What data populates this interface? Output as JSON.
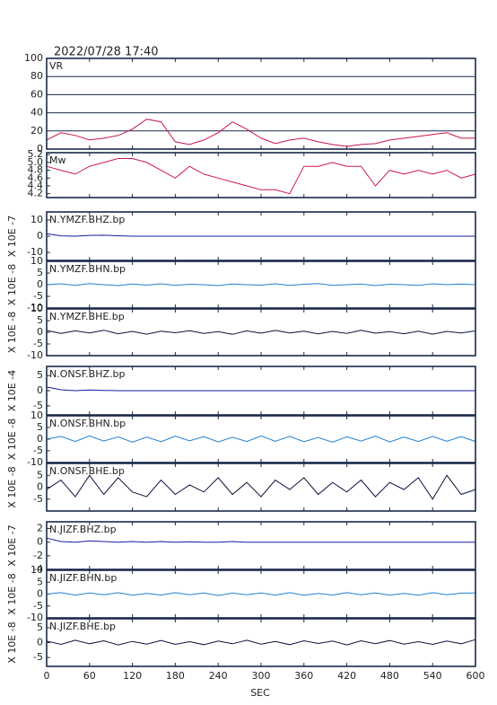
{
  "title": "2022/07/28 17:40",
  "x_axis": {
    "label": "SEC",
    "xlim": [
      0,
      600
    ],
    "xticks": [
      0,
      60,
      120,
      180,
      240,
      300,
      360,
      420,
      480,
      540,
      600
    ],
    "x": [
      0,
      20,
      40,
      60,
      80,
      100,
      120,
      140,
      160,
      180,
      200,
      220,
      240,
      260,
      280,
      300,
      320,
      340,
      360,
      380,
      400,
      420,
      440,
      460,
      480,
      500,
      520,
      540,
      560,
      580,
      600
    ]
  },
  "chart_data": [
    {
      "type": "line",
      "label": "VR",
      "ylim": [
        0,
        100
      ],
      "yticks": [
        0,
        20,
        40,
        60,
        80,
        100
      ],
      "grid": true,
      "series": [
        {
          "color": "#c8184a",
          "values": [
            10,
            18,
            15,
            10,
            12,
            15,
            22,
            33,
            30,
            8,
            5,
            10,
            18,
            30,
            22,
            12,
            6,
            10,
            12,
            8,
            5,
            3,
            5,
            6,
            10,
            12,
            14,
            16,
            18,
            12,
            12
          ]
        }
      ]
    },
    {
      "type": "line",
      "label": "Mw",
      "ylim": [
        4.1,
        5.25
      ],
      "yticks": [
        4.2,
        4.4,
        4.6,
        4.8,
        {
          "value": 5,
          "label": "5.0"
        },
        5.2
      ],
      "grid": false,
      "series": [
        {
          "color": "#c8184a",
          "values": [
            4.9,
            4.8,
            4.7,
            4.9,
            5.0,
            5.1,
            5.1,
            5.0,
            4.8,
            4.6,
            4.9,
            4.7,
            4.6,
            4.5,
            4.4,
            4.3,
            4.3,
            4.2,
            4.9,
            4.9,
            5.0,
            4.9,
            4.9,
            4.4,
            4.8,
            4.7,
            4.8,
            4.7,
            4.8,
            4.6,
            4.7
          ]
        }
      ]
    },
    {
      "type": "line",
      "label": "N.YMZF.BHZ.bp",
      "unit": "X 10E -7",
      "ylim": [
        -15,
        15
      ],
      "yticks": [
        -10,
        0,
        10
      ],
      "series": [
        {
          "color": "#1a1aa0",
          "values": [
            1.5,
            0.2,
            0,
            0.5,
            0.6,
            0.3,
            0,
            0,
            0,
            0,
            0,
            0,
            0,
            0,
            0,
            0,
            0,
            0,
            0,
            0,
            0,
            0,
            0,
            0,
            0,
            0,
            0,
            0,
            0,
            0,
            0
          ]
        }
      ]
    },
    {
      "type": "line",
      "label": "N.YMZF.BHN.bp",
      "unit": "X 10E -8",
      "ylim": [
        -10,
        10
      ],
      "yticks": [
        -10,
        -5,
        0,
        5,
        10
      ],
      "series": [
        {
          "color": "#2080d0",
          "values": [
            0,
            0.4,
            -0.3,
            0.5,
            0,
            -0.4,
            0.3,
            -0.2,
            0.4,
            -0.3,
            0.2,
            0,
            -0.4,
            0.3,
            0,
            -0.2,
            0.4,
            -0.3,
            0.2,
            0.5,
            -0.3,
            0,
            0.3,
            -0.4,
            0.2,
            0,
            -0.3,
            0.4,
            0,
            0.3,
            0
          ]
        }
      ]
    },
    {
      "type": "line",
      "label": "N.YMZF.BHE.bp",
      "unit": "X 10E -8",
      "ylim": [
        -10,
        10
      ],
      "yticks": [
        -10,
        -5,
        0,
        5,
        10
      ],
      "series": [
        {
          "color": "#101040",
          "values": [
            0.8,
            -0.5,
            0.6,
            -0.3,
            0.9,
            -0.6,
            0.4,
            -0.8,
            0.5,
            -0.2,
            0.7,
            -0.5,
            0.3,
            -0.9,
            0.6,
            -0.4,
            0.8,
            -0.3,
            0.5,
            -0.7,
            0.4,
            -0.5,
            0.9,
            -0.4,
            0.3,
            -0.6,
            0.5,
            -0.8,
            0.4,
            -0.3,
            0.6
          ]
        }
      ]
    },
    {
      "type": "line",
      "label": "N.ONSF.BHZ.bp",
      "unit": "X 10E -4",
      "ylim": [
        -8,
        8
      ],
      "yticks": [
        -5,
        0,
        5
      ],
      "series": [
        {
          "color": "#1a1aa0",
          "values": [
            1.2,
            0.3,
            0,
            0.2,
            0.1,
            0,
            0,
            0,
            0,
            0,
            0,
            0,
            0,
            0,
            0,
            0,
            0,
            0,
            0,
            0,
            0,
            0,
            0,
            0,
            0,
            0,
            0,
            0,
            0,
            0,
            0
          ]
        }
      ]
    },
    {
      "type": "line",
      "label": "N.ONSF.BHN.bp",
      "unit": "X 10E -8",
      "ylim": [
        -10,
        10
      ],
      "yticks": [
        -10,
        -5,
        0,
        5,
        10
      ],
      "series": [
        {
          "color": "#2080d0",
          "values": [
            0,
            1.2,
            -1.0,
            1.4,
            -0.8,
            1.0,
            -1.3,
            0.9,
            -1.1,
            1.3,
            -0.7,
            1.1,
            -1.2,
            0.8,
            -1.0,
            1.4,
            -0.9,
            1.2,
            -1.1,
            0.7,
            -1.3,
            1.0,
            -0.8,
            1.3,
            -1.2,
            0.9,
            -1.0,
            1.2,
            -0.9,
            1.1,
            -1.0
          ]
        }
      ]
    },
    {
      "type": "line",
      "label": "N.ONSF.BHE.bp",
      "unit": "X 10E -8",
      "ylim": [
        -10,
        10
      ],
      "yticks": [
        -5,
        0,
        5
      ],
      "series": [
        {
          "color": "#101040",
          "values": [
            -1,
            3,
            -4,
            5,
            -3,
            4,
            -2,
            -4,
            3,
            -3,
            1,
            -2,
            4,
            -3,
            2,
            -4,
            3,
            -1,
            4,
            -3,
            2,
            -2,
            3,
            -4,
            2,
            -1,
            4,
            -5,
            5,
            -3,
            -1
          ]
        }
      ]
    },
    {
      "type": "line",
      "label": "N.JIZF.BHZ.bp",
      "unit": "X 10E -7",
      "ylim": [
        -4,
        3
      ],
      "yticks": [
        -4,
        -2,
        0,
        2
      ],
      "series": [
        {
          "color": "#1a1aa0",
          "values": [
            0.6,
            0.1,
            0,
            0.2,
            0.1,
            0,
            0.1,
            0,
            0.1,
            0,
            0.05,
            0,
            0,
            0.1,
            0,
            0,
            0,
            0,
            0,
            0,
            0,
            0,
            0,
            0,
            0,
            0,
            0,
            0,
            0,
            0,
            0
          ]
        }
      ]
    },
    {
      "type": "line",
      "label": "N.JIZF.BHN.bp",
      "unit": "X 10E -8",
      "ylim": [
        -10,
        10
      ],
      "yticks": [
        -10,
        -5,
        0,
        5,
        10
      ],
      "series": [
        {
          "color": "#2080d0",
          "values": [
            0,
            0.6,
            -0.4,
            0.5,
            -0.3,
            0.6,
            -0.5,
            0.3,
            -0.4,
            0.6,
            -0.3,
            0.5,
            -0.6,
            0.4,
            -0.3,
            0.5,
            -0.4,
            0.6,
            -0.5,
            0.3,
            -0.4,
            0.6,
            -0.3,
            0.5,
            -0.4,
            0.3,
            -0.5,
            0.6,
            -0.3,
            0.4,
            0.5
          ]
        }
      ]
    },
    {
      "type": "line",
      "label": "N.JIZF.BHE.bp",
      "unit": "X 10E -8",
      "ylim": [
        -8,
        8
      ],
      "yticks": [
        -5,
        0,
        5
      ],
      "series": [
        {
          "color": "#101040",
          "values": [
            0.5,
            -0.6,
            0.8,
            -0.4,
            0.6,
            -0.8,
            0.4,
            -0.5,
            0.7,
            -0.6,
            0.3,
            -0.7,
            0.5,
            -0.4,
            0.8,
            -0.5,
            0.4,
            -0.7,
            0.6,
            -0.3,
            0.5,
            -0.8,
            0.6,
            -0.4,
            0.7,
            -0.5,
            0.3,
            -0.6,
            0.5,
            -0.4,
            1.0
          ]
        }
      ]
    }
  ]
}
